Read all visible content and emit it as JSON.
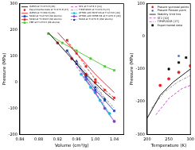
{
  "chart_data": [
    {
      "type": "line",
      "x_label": "Volume (cm³/g)",
      "y_label": "Pressure (MPa)",
      "xlim": [
        0.84,
        1.06
      ],
      "xticks": [
        0.84,
        0.88,
        0.92,
        0.96,
        {
          "value": 1,
          "label": "1.00"
        },
        1.04
      ],
      "ylim": [
        -200,
        300
      ],
      "yticks": [
        -200,
        -100,
        0,
        100,
        200,
        300
      ],
      "grid": false,
      "legend": "upper left",
      "series": [
        {
          "name": "IAPWS at T=273 K [46]",
          "color": "#000000",
          "marker": "none",
          "line_style": "solid",
          "x": [
            0.9,
            0.92,
            0.94,
            0.96,
            0.98,
            1.0,
            1.02,
            1.04
          ],
          "values": [
            190,
            150,
            110,
            70,
            30,
            -5,
            -40,
            -70
          ]
        },
        {
          "name": "Experimental data at T=273 K [47]",
          "color": "#e41a1c",
          "marker": "circle",
          "line_style": "none",
          "x": [
            0.92,
            0.95,
            0.98,
            1.0
          ],
          "values": [
            150,
            90,
            30,
            0
          ]
        },
        {
          "name": "IAPWS at T=330 K [46]",
          "color": "#e41a1c",
          "marker": "none",
          "line_style": "solid",
          "x": [
            0.92,
            0.94,
            0.96,
            0.98,
            1.0,
            1.02,
            1.04
          ],
          "values": [
            190,
            150,
            110,
            70,
            30,
            -5,
            -40
          ]
        },
        {
          "name": "SCAN at T=273 K (96 atoms)",
          "color": "#1f3fbf",
          "marker": "square",
          "line_style": "solid",
          "x": [
            0.94,
            0.96,
            0.98,
            1.0,
            1.02,
            1.04
          ],
          "values": [
            120,
            70,
            20,
            -30,
            -70,
            -110
          ]
        },
        {
          "name": "SCAN at T=330 K (96 atoms)",
          "color": "#d62728",
          "marker": "square",
          "line_style": "dashed",
          "x": [
            0.94,
            0.96,
            0.98,
            1.0,
            1.02,
            1.04
          ],
          "values": [
            160,
            110,
            60,
            10,
            -30,
            -60
          ]
        },
        {
          "name": "PBE at T=273 K (96 atoms)",
          "color": "#4cc832",
          "marker": "square",
          "line_style": "solid",
          "x": [
            0.9,
            0.93,
            0.96,
            0.99,
            1.02,
            1.04
          ],
          "values": [
            185,
            150,
            120,
            90,
            60,
            45
          ]
        },
        {
          "name": "ST2 at T=273 K [10]",
          "color": "#d62fd6",
          "marker": "none",
          "line_style": "dashed",
          "x": [
            0.96,
            0.98,
            1.0,
            1.02
          ],
          "values": [
            60,
            10,
            -40,
            -90
          ]
        },
        {
          "name": "TIP4P/2005 at T=270 K [17]",
          "color": "#808080",
          "marker": "none",
          "line_style": "dashdot",
          "x": [
            0.96,
            0.98,
            1.0,
            1.02,
            1.04
          ],
          "values": [
            80,
            40,
            -10,
            -60,
            -100
          ]
        },
        {
          "name": "ATTNN with BLYP-D3 at T=270 K [40]",
          "color": "#17becf",
          "marker": "circle",
          "line_style": "solid",
          "x": [
            0.97,
            0.99,
            1.01,
            1.03
          ],
          "values": [
            30,
            -20,
            -70,
            -120
          ]
        },
        {
          "name": "ATTNN with RPBE-D3 at T=270 K [40]",
          "color": "#7b3fbf",
          "marker": "circle",
          "line_style": "solid",
          "x": [
            0.98,
            1.0,
            1.02,
            1.04
          ],
          "values": [
            10,
            -40,
            -100,
            -150
          ]
        },
        {
          "name": "SCAN at T=273 K (192 atoms)",
          "color": "#0b1f6e",
          "marker": "triangle",
          "line_style": "dotted",
          "x": [
            0.96,
            0.98,
            1.0,
            1.02
          ],
          "values": [
            80,
            25,
            -20,
            -65
          ]
        }
      ]
    },
    {
      "type": "line",
      "x_label": "Temperature (K)",
      "y_label": "Pressure (MPa)",
      "xlim": [
        200,
        300
      ],
      "xticks": [
        200,
        250,
        300
      ],
      "ylim": [
        -300,
        100
      ],
      "yticks": [
        -300,
        -200,
        -100,
        0,
        100
      ],
      "grid": false,
      "legend": "upper right",
      "series": [
        {
          "name": "Present spinodal points",
          "color": "#e41a1c",
          "marker": "circle",
          "line_style": "none",
          "x": [
            230,
            250,
            273,
            300
          ],
          "values": [
            -150,
            -130,
            -110,
            -90
          ]
        },
        {
          "name": "Present Poisson point",
          "color": "#1f3fbf",
          "marker": "star",
          "line_style": "none",
          "x": [
            273
          ],
          "values": [
            -60
          ]
        },
        {
          "name": "Stability limit line",
          "color": "#000000",
          "marker": "none",
          "line_style": "solid",
          "x": [
            200,
            230,
            260,
            290,
            300
          ],
          "values": [
            -250,
            -180,
            -140,
            -110,
            -100
          ]
        },
        {
          "name": "ST2 [10]",
          "color": "#d62fd6",
          "marker": "none",
          "line_style": "dashed",
          "x": [
            220,
            250,
            280,
            300
          ],
          "values": [
            -240,
            -190,
            -160,
            -150
          ]
        },
        {
          "name": "TIP4P/2005 [17]",
          "color": "#808080",
          "marker": "none",
          "line_style": "dashdot",
          "x": [
            210,
            240,
            270,
            300
          ],
          "values": [
            -220,
            -170,
            -140,
            -120
          ]
        },
        {
          "name": "Experimental data",
          "color": "#000000",
          "marker": "square",
          "line_style": "none",
          "x": [
            250,
            273,
            290
          ],
          "values": [
            -100,
            -80,
            -65
          ]
        }
      ]
    }
  ]
}
